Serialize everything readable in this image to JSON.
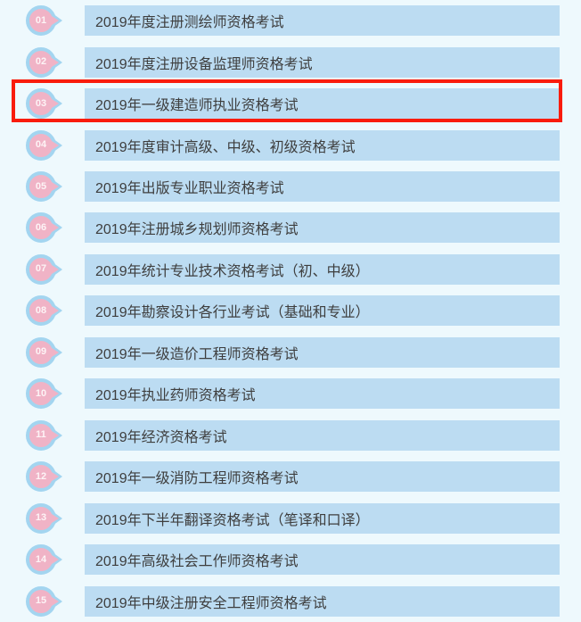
{
  "colors": {
    "background": "#eef9fd",
    "bar_blue": "#bcdcf2",
    "badge_ring_blue": "#a3d5f0",
    "badge_pink": "#f0b3c6",
    "number_text": "#fdf4f6",
    "title_text": "#3e3e3e",
    "highlight_red": "#f91c0c"
  },
  "list": {
    "items": [
      {
        "num": "01",
        "label": "2019年度注册测绘师资格考试",
        "highlighted": false
      },
      {
        "num": "02",
        "label": "2019年度注册设备监理师资格考试",
        "highlighted": false
      },
      {
        "num": "03",
        "label": "2019年一级建造师执业资格考试",
        "highlighted": true
      },
      {
        "num": "04",
        "label": "2019年度审计高级、中级、初级资格考试",
        "highlighted": false
      },
      {
        "num": "05",
        "label": "2019年出版专业职业资格考试",
        "highlighted": false
      },
      {
        "num": "06",
        "label": "2019年注册城乡规划师资格考试",
        "highlighted": false
      },
      {
        "num": "07",
        "label": "2019年统计专业技术资格考试（初、中级）",
        "highlighted": false
      },
      {
        "num": "08",
        "label": "2019年勘察设计各行业考试（基础和专业）",
        "highlighted": false
      },
      {
        "num": "09",
        "label": "2019年一级造价工程师资格考试",
        "highlighted": false
      },
      {
        "num": "10",
        "label": "2019年执业药师资格考试",
        "highlighted": false
      },
      {
        "num": "11",
        "label": "2019年经济资格考试",
        "highlighted": false
      },
      {
        "num": "12",
        "label": "2019年一级消防工程师资格考试",
        "highlighted": false
      },
      {
        "num": "13",
        "label": "2019年下半年翻译资格考试（笔译和口译）",
        "highlighted": false
      },
      {
        "num": "14",
        "label": "2019年高级社会工作师资格考试",
        "highlighted": false
      },
      {
        "num": "15",
        "label": "2019年中级注册安全工程师资格考试",
        "highlighted": false
      }
    ]
  }
}
